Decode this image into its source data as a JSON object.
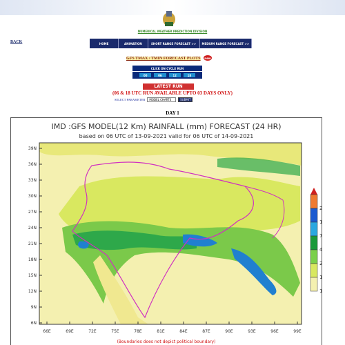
{
  "header": {
    "division": "NUMERICAL WEATHER PREDICTION DIVISION",
    "back": "BACK"
  },
  "nav": [
    "HOME",
    "ANIMATION",
    "SHORT RANGE FORECAST >>",
    "MEDIUM RANGE FORECAST >>"
  ],
  "controls": {
    "plots_link": "GFS TMAX / TMIN FORECAST PLOTS",
    "badge": "new",
    "cycle_caption": "CLICK ON CYCLE RUN",
    "cycles": [
      "00",
      "06",
      "12",
      "18"
    ],
    "latest_run": "LATEST RUN",
    "note": "(06 & 18 UTC RUN AVAILABLE UPTO 03 DAYS ONLY)",
    "select_label": "SELECT PARAMETER",
    "select_value": "MODEL CHARTS",
    "submit": "SUBMIT"
  },
  "map": {
    "day": "DAY 1",
    "title": "IMD :GFS MODEL(12 Km) RAINFALL (mm) FORECAST (24 HR)",
    "subtitle": "based on 06 UTC of 13-09-2021 valid for 06 UTC of 14-09-2021",
    "lat_labels": [
      "39N",
      "36N",
      "33N",
      "30N",
      "27N",
      "24N",
      "21N",
      "18N",
      "15N",
      "12N",
      "9N",
      "6N"
    ],
    "lon_labels": [
      "66E",
      "69E",
      "72E",
      "75E",
      "78E",
      "81E",
      "84E",
      "87E",
      "90E",
      "93E",
      "96E",
      "99E"
    ],
    "legend": [
      {
        "label": "200",
        "color": "#f07a30"
      },
      {
        "label": "130",
        "color": "#1a5ad0"
      },
      {
        "label": "70",
        "color": "#2aa8e0"
      },
      {
        "label": "40",
        "color": "#1a9a3a"
      },
      {
        "label": "20",
        "color": "#7ad04a"
      },
      {
        "label": "10",
        "color": "#d8e860"
      },
      {
        "label": "1",
        "color": "#f4f0b0"
      }
    ],
    "footnote": "(Boundaries does not depict political boundary)"
  }
}
